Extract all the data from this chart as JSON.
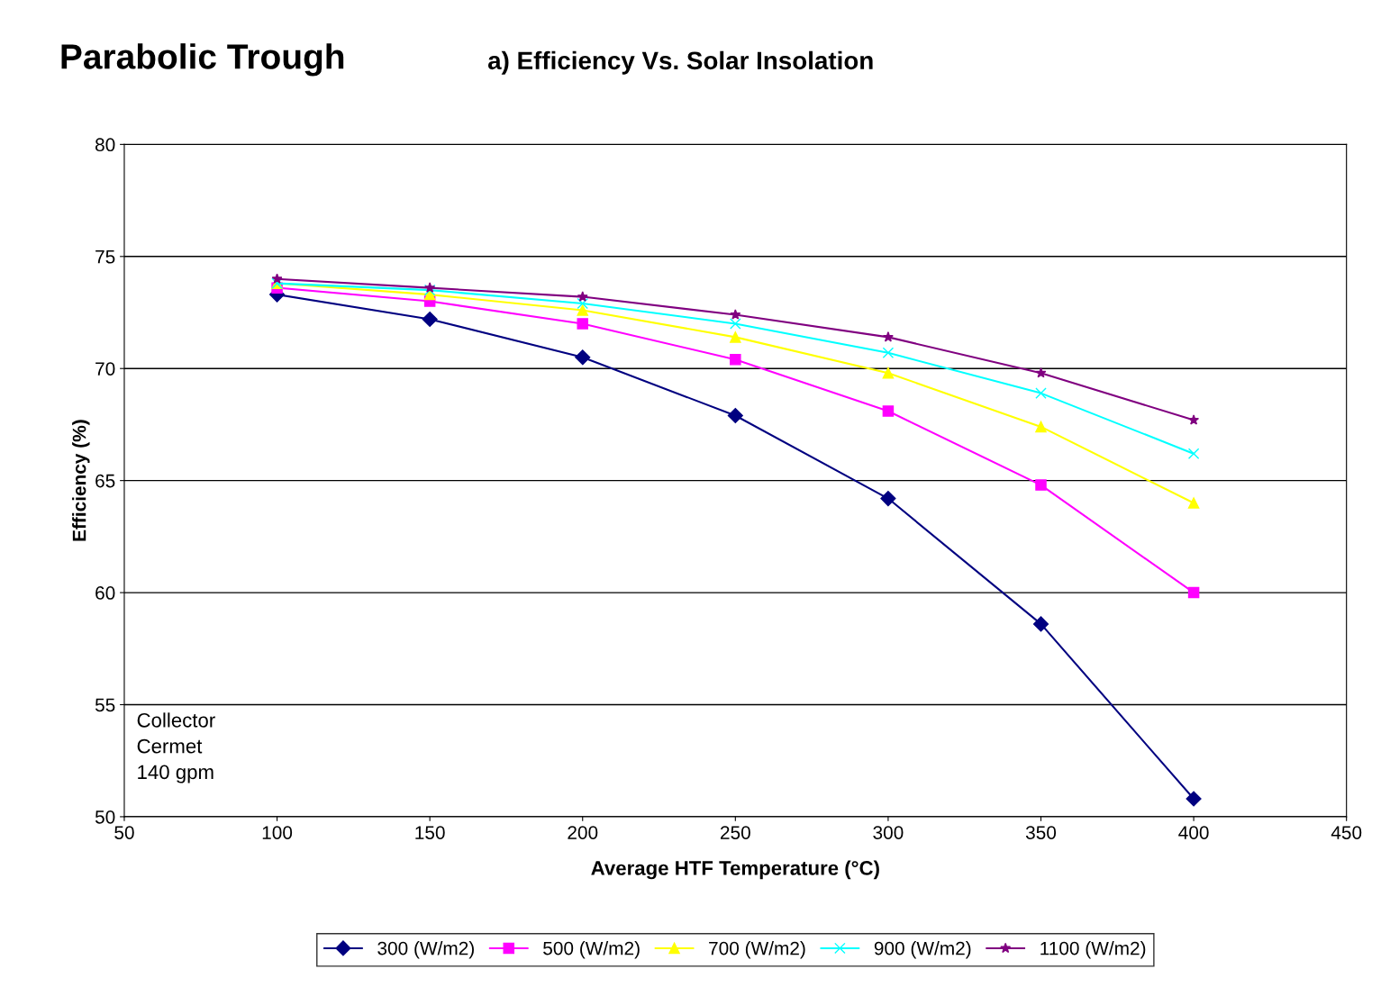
{
  "chart_data": {
    "type": "line",
    "title": "Parabolic Trough",
    "subtitle": "a) Efficiency Vs. Solar Insolation",
    "xlabel": "Average HTF Temperature (°C)",
    "ylabel": "Efficiency (%)",
    "x": [
      100,
      150,
      200,
      250,
      300,
      350,
      400
    ],
    "series": [
      {
        "name": "300 (W/m2)",
        "color": "#000080",
        "marker": "diamond",
        "values": [
          73.3,
          72.2,
          70.5,
          67.9,
          64.2,
          58.6,
          50.8
        ]
      },
      {
        "name": "500 (W/m2)",
        "color": "#ff00ff",
        "marker": "square",
        "values": [
          73.6,
          73.0,
          72.0,
          70.4,
          68.1,
          64.8,
          60.0
        ]
      },
      {
        "name": "700 (W/m2)",
        "color": "#ffff00",
        "marker": "triangle",
        "values": [
          73.8,
          73.3,
          72.6,
          71.4,
          69.8,
          67.4,
          64.0
        ]
      },
      {
        "name": "900 (W/m2)",
        "color": "#00ffff",
        "marker": "cross",
        "values": [
          73.8,
          73.5,
          72.9,
          72.0,
          70.7,
          68.9,
          66.2
        ]
      },
      {
        "name": "1100 (W/m2)",
        "color": "#800080",
        "marker": "star",
        "values": [
          74.0,
          73.6,
          73.2,
          72.4,
          71.4,
          69.8,
          67.7
        ]
      }
    ],
    "xlim": [
      50,
      450
    ],
    "xticks": [
      50,
      100,
      150,
      200,
      250,
      300,
      350,
      400,
      450
    ],
    "ylim": [
      50,
      80
    ],
    "yticks": [
      50,
      55,
      60,
      65,
      70,
      75,
      80
    ],
    "grid": "y",
    "legend": "bottom",
    "line_style": "solid",
    "annotations": [
      "Collector",
      "Cermet",
      "140 gpm"
    ]
  }
}
